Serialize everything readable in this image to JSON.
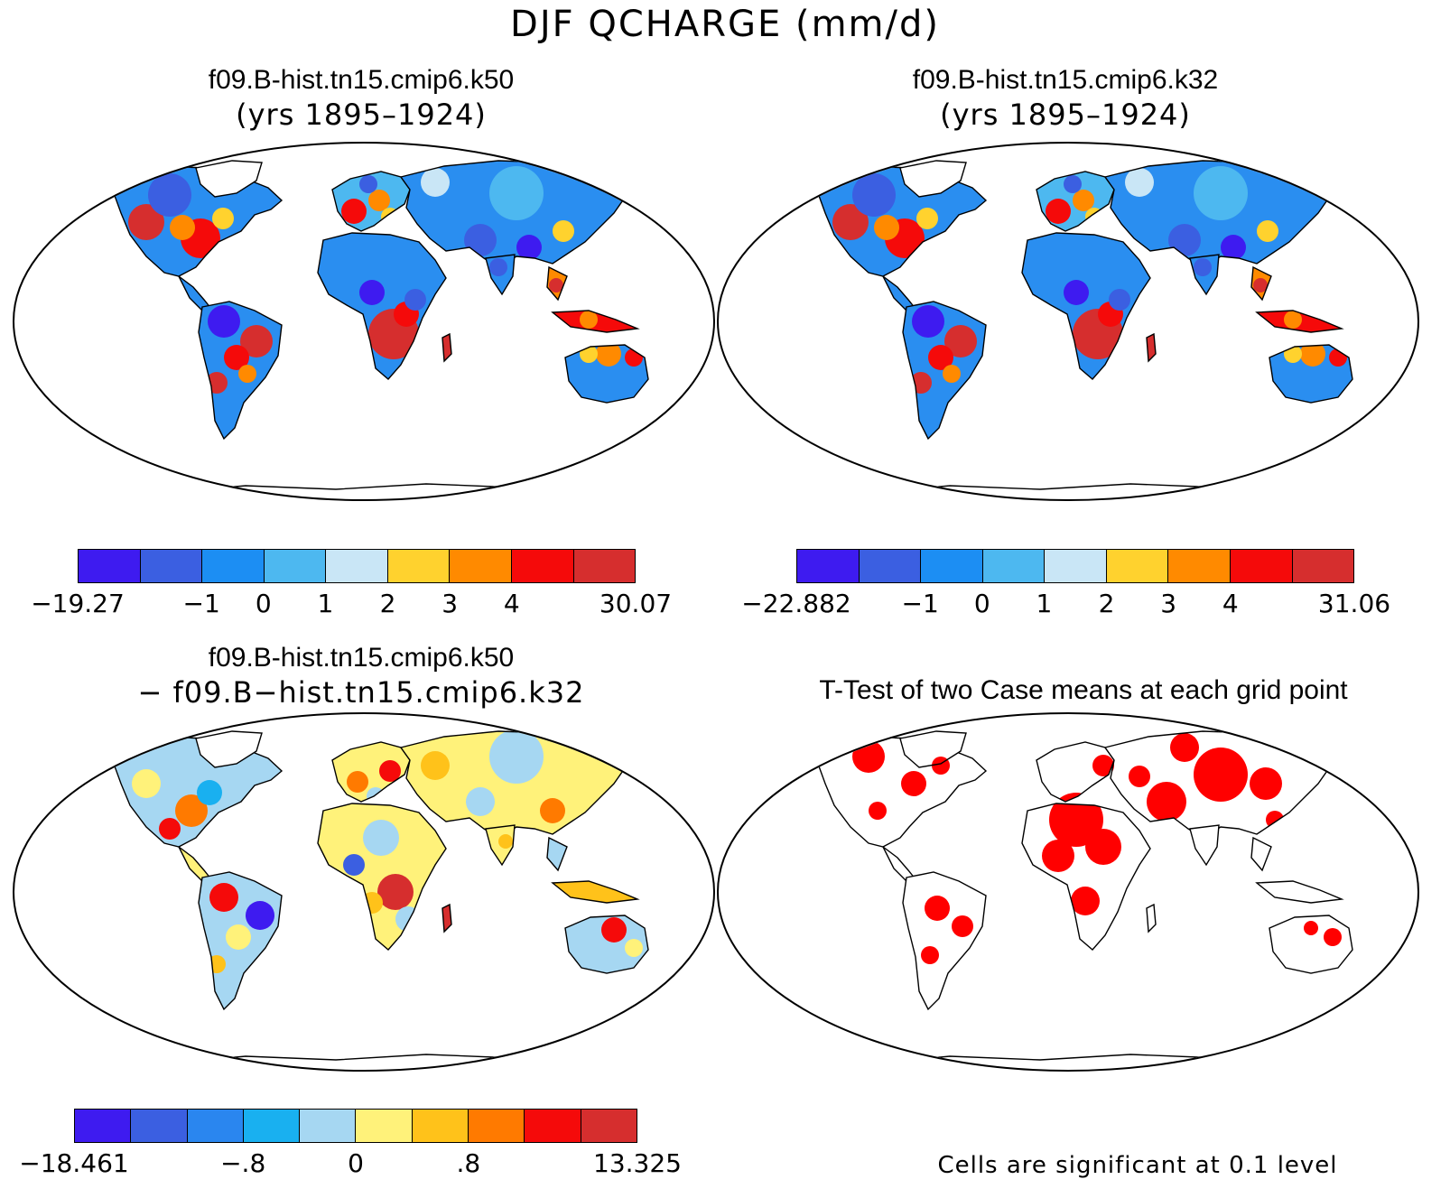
{
  "figure": {
    "title": "DJF QCHARGE (mm/d)"
  },
  "panels": [
    {
      "title_line1": "f09.B-hist.tn15.cmip6.k50",
      "title_line2": "(yrs 1895–1924)",
      "colorbar": {
        "colors": [
          "#3e1bf0",
          "#3b5fe1",
          "#1c8ef3",
          "#4db8f0",
          "#c9e6f6",
          "#ffd22e",
          "#ff8a00",
          "#f50a0a",
          "#d62e2e"
        ],
        "labels": [
          "−19.27",
          "−1",
          "0",
          "1",
          "2",
          "3",
          "4",
          "30.07"
        ]
      }
    },
    {
      "title_line1": "f09.B-hist.tn15.cmip6.k32",
      "title_line2": "(yrs 1895–1924)",
      "colorbar": {
        "colors": [
          "#3e1bf0",
          "#3b5fe1",
          "#1c8ef3",
          "#4db8f0",
          "#c9e6f6",
          "#ffd22e",
          "#ff8a00",
          "#f50a0a",
          "#d62e2e"
        ],
        "labels": [
          "−22.882",
          "−1",
          "0",
          "1",
          "2",
          "3",
          "4",
          "31.06"
        ]
      }
    },
    {
      "title_line1": "f09.B-hist.tn15.cmip6.k50",
      "title_line2": "− f09.B−hist.tn15.cmip6.k32",
      "colorbar": {
        "colors": [
          "#3e1bf0",
          "#3b5fe1",
          "#2a86ef",
          "#19b0f0",
          "#a6d7f2",
          "#fff27a",
          "#ffc21a",
          "#ff7a00",
          "#f50a0a",
          "#d62e2e"
        ],
        "labels": [
          "−18.461",
          "−.8",
          "0",
          ".8",
          "13.325"
        ]
      }
    },
    {
      "title": "T-Test of two Case means at each grid point",
      "note": "Cells are significant at 0.1 level",
      "significant_color": "#ff0000"
    }
  ]
}
